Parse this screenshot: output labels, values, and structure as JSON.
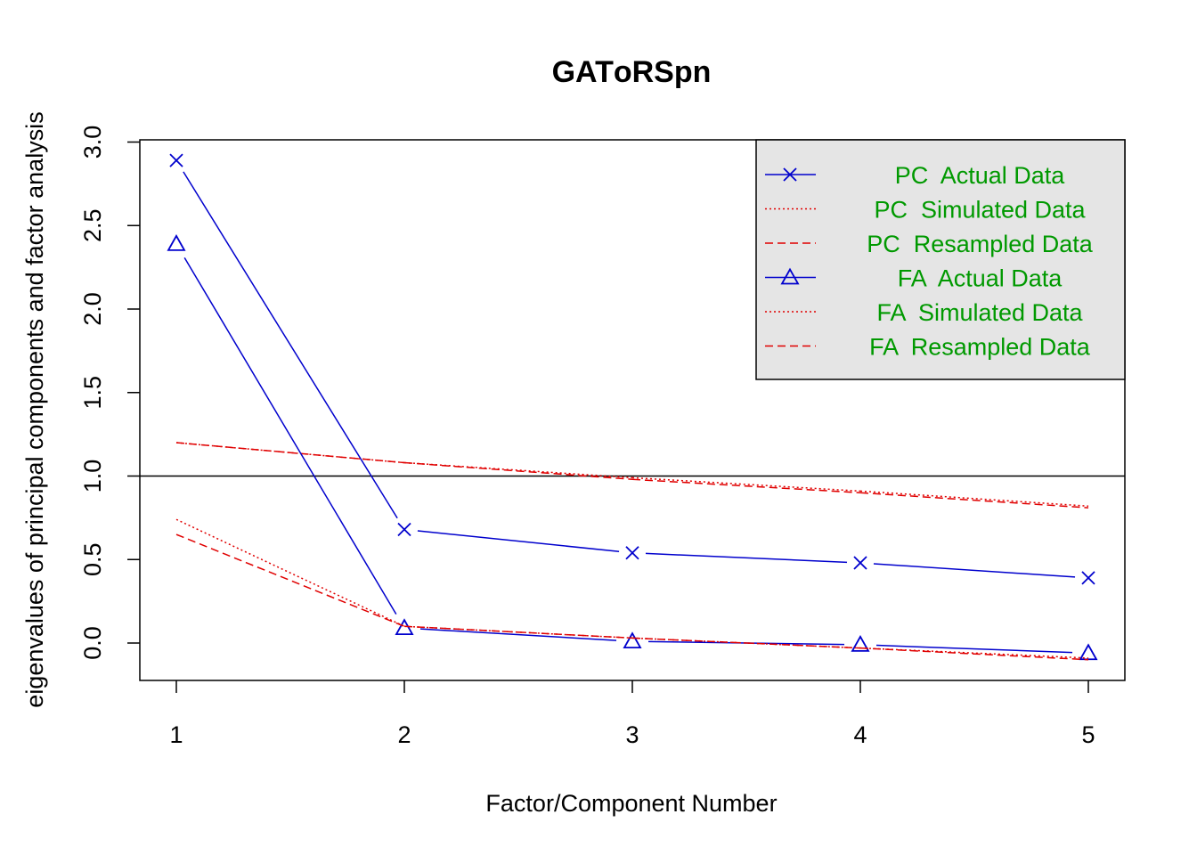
{
  "chart_data": {
    "type": "line",
    "title": "GATоRSpn",
    "xlabel": "Factor/Component Number",
    "ylabel": "eigenvalues of principal components and factor analysis",
    "x": [
      1,
      2,
      3,
      4,
      5
    ],
    "x_ticks": [
      "1",
      "2",
      "3",
      "4",
      "5"
    ],
    "y_ticks": [
      "0.0",
      "0.5",
      "1.0",
      "1.5",
      "2.0",
      "2.5",
      "3.0"
    ],
    "xlim": [
      1,
      5
    ],
    "ylim": [
      -0.22,
      3.02
    ],
    "reference_line": 1.0,
    "legend_position": "top-right",
    "series": [
      {
        "name": "PC  Actual Data",
        "values": [
          2.89,
          0.68,
          0.54,
          0.48,
          0.39
        ],
        "color": "#0000CD",
        "style": "solid",
        "marker": "x"
      },
      {
        "name": "PC  Simulated Data",
        "values": [
          1.2,
          1.08,
          0.99,
          0.91,
          0.82
        ],
        "color": "#E00000",
        "style": "dotted",
        "marker": "none"
      },
      {
        "name": "PC  Resampled Data",
        "values": [
          1.2,
          1.08,
          0.98,
          0.9,
          0.81
        ],
        "color": "#E00000",
        "style": "dashed",
        "marker": "none"
      },
      {
        "name": "FA  Actual Data",
        "values": [
          2.39,
          0.09,
          0.01,
          -0.01,
          -0.06
        ],
        "color": "#0000CD",
        "style": "solid",
        "marker": "triangle"
      },
      {
        "name": "FA  Simulated Data",
        "values": [
          0.74,
          0.1,
          0.03,
          -0.03,
          -0.09
        ],
        "color": "#E00000",
        "style": "dotted",
        "marker": "none"
      },
      {
        "name": "FA  Resampled Data",
        "values": [
          0.65,
          0.1,
          0.03,
          -0.03,
          -0.1
        ],
        "color": "#E00000",
        "style": "dashed",
        "marker": "none"
      }
    ],
    "legend_text_color": "#009900",
    "legend_bg": "#E5E5E5"
  }
}
